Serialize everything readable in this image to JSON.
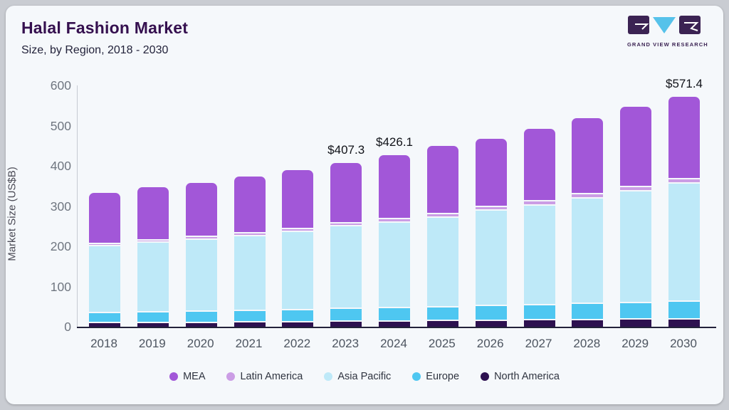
{
  "header": {
    "title": "Halal Fashion Market",
    "subtitle": "Size, by Region, 2018 - 2030"
  },
  "logo": {
    "text": "GRAND VIEW RESEARCH",
    "dark_color": "#3b2353",
    "light_color": "#56c2ea"
  },
  "colors": {
    "card_bg": "#f5f8fb",
    "page_bg": "#c9ccd2",
    "title": "#35104f",
    "axis_text": "#6f7680",
    "baseline": "#22223a"
  },
  "chart_data": {
    "type": "bar",
    "stacked": true,
    "title": "Halal Fashion Market",
    "subtitle": "Size, by Region, 2018 - 2030",
    "xlabel": "",
    "ylabel": "Market Size (US$B)",
    "ylim": [
      0,
      600
    ],
    "yticks": [
      0,
      100,
      200,
      300,
      400,
      500,
      600
    ],
    "grid": false,
    "legend_position": "bottom",
    "categories": [
      "2018",
      "2019",
      "2020",
      "2021",
      "2022",
      "2023",
      "2024",
      "2025",
      "2026",
      "2027",
      "2028",
      "2029",
      "2030"
    ],
    "series": [
      {
        "name": "North America",
        "color": "#2d1150",
        "values": [
          12.0,
          12.6,
          13.2,
          13.9,
          14.6,
          15.3,
          16.1,
          16.9,
          17.8,
          18.7,
          19.7,
          20.7,
          21.8
        ]
      },
      {
        "name": "Europe",
        "color": "#4ec7f1",
        "values": [
          25.5,
          26.6,
          27.8,
          29.1,
          30.4,
          31.8,
          33.3,
          34.8,
          36.4,
          38.1,
          39.9,
          41.8,
          43.7
        ]
      },
      {
        "name": "Asia Pacific",
        "color": "#bee9f8",
        "values": [
          165.8,
          172.4,
          179.1,
          186.2,
          193.6,
          205.2,
          213.4,
          223.0,
          237.0,
          248.5,
          263.3,
          277.0,
          293.4
        ]
      },
      {
        "name": "Latin America",
        "color": "#cb9de5",
        "values": [
          6.1,
          6.4,
          6.7,
          7.0,
          7.3,
          7.7,
          8.1,
          8.5,
          8.9,
          9.3,
          9.8,
          10.3,
          10.8
        ]
      },
      {
        "name": "MEA",
        "color": "#a257d8",
        "values": [
          124.1,
          128.4,
          131.0,
          136.9,
          143.8,
          147.3,
          155.2,
          166.8,
          168.1,
          177.8,
          185.6,
          196.9,
          201.7
        ]
      }
    ],
    "totals_estimated": [
      333.5,
      346.4,
      357.8,
      373.1,
      389.7,
      407.3,
      426.1,
      450.0,
      468.2,
      492.4,
      518.3,
      546.7,
      571.4
    ],
    "annotations": [
      {
        "category": "2023",
        "text": "$407.3"
      },
      {
        "category": "2024",
        "text": "$426.1"
      },
      {
        "category": "2030",
        "text": "$571.4"
      }
    ],
    "legend": [
      "MEA",
      "Latin America",
      "Asia Pacific",
      "Europe",
      "North America"
    ]
  }
}
